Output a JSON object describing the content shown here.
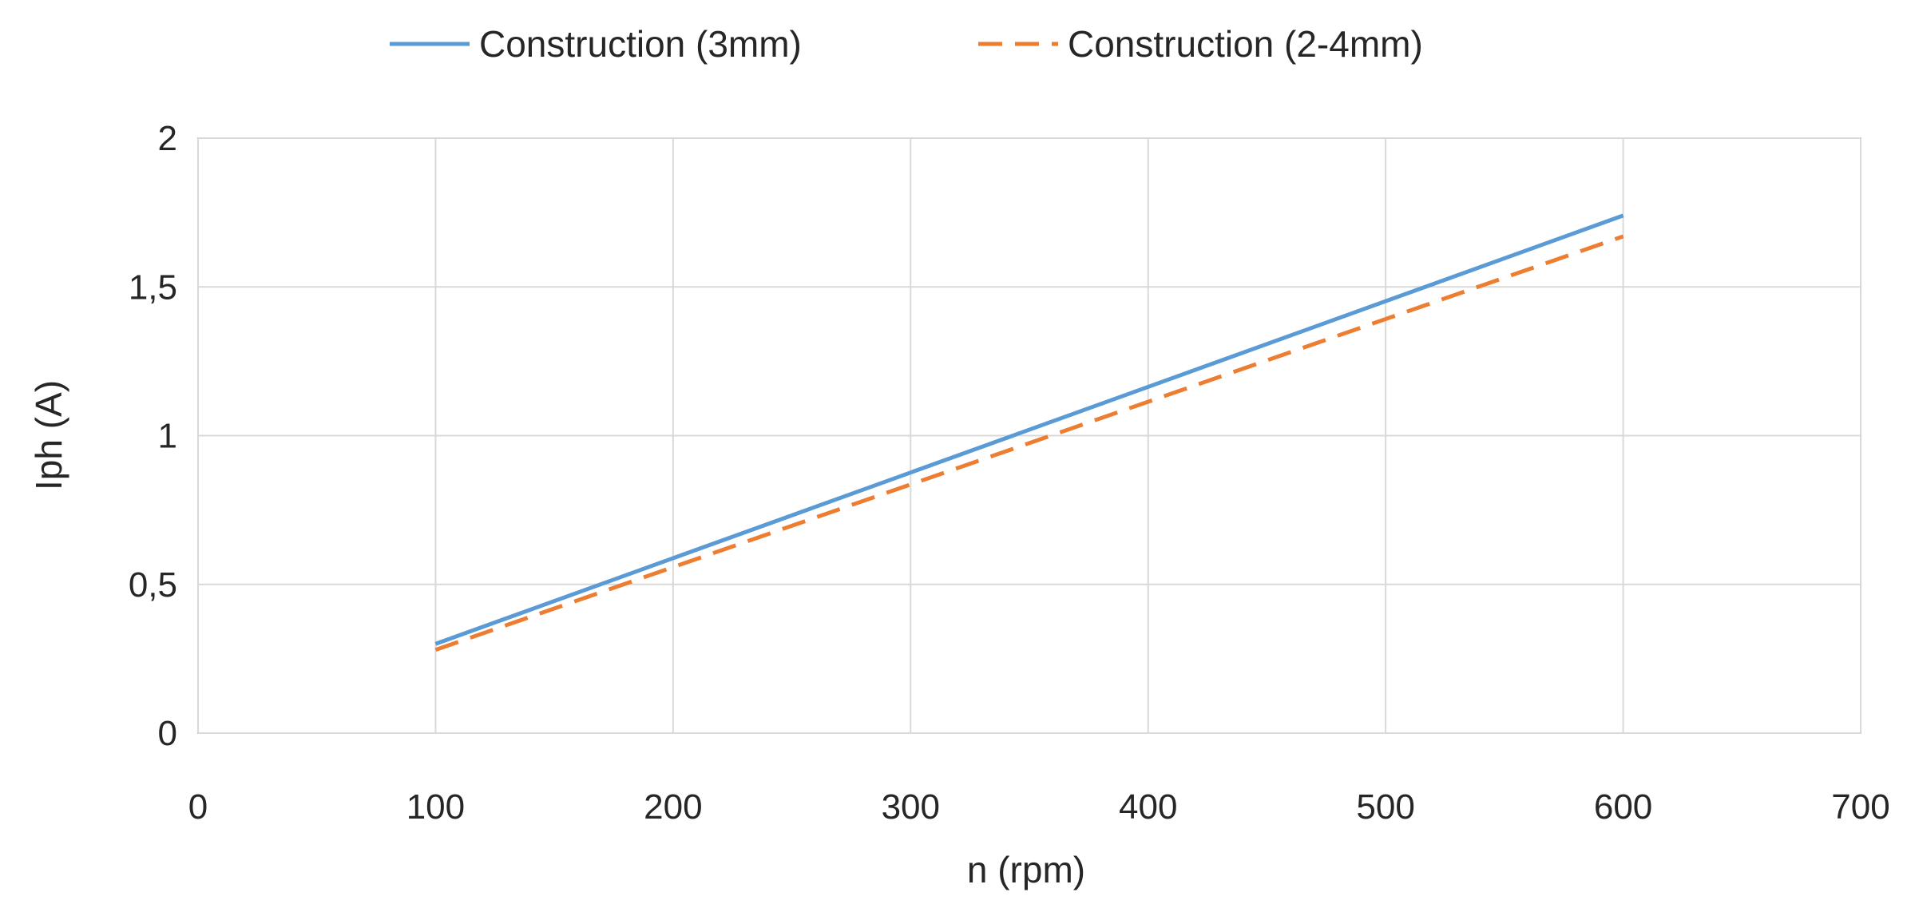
{
  "chart_data": {
    "type": "line",
    "title": "",
    "xlabel": "n (rpm)",
    "ylabel": "Iph (A)",
    "xlim": [
      0,
      700
    ],
    "ylim": [
      0,
      2
    ],
    "xticks": [
      0,
      100,
      200,
      300,
      400,
      500,
      600,
      700
    ],
    "yticks": [
      0,
      0.5,
      1,
      1.5,
      2
    ],
    "xtick_labels": [
      "0",
      "100",
      "200",
      "300",
      "400",
      "500",
      "600",
      "700"
    ],
    "ytick_labels": [
      "0",
      "0,5",
      "1",
      "1,5",
      "2"
    ],
    "grid": true,
    "legend_position": "top",
    "series": [
      {
        "name": "Construction (3mm)",
        "color": "#5B9BD5",
        "style": "solid",
        "x": [
          100,
          600
        ],
        "y": [
          0.3,
          1.74
        ]
      },
      {
        "name": "Construction (2-4mm)",
        "color": "#ED7D31",
        "style": "dashed",
        "x": [
          100,
          600
        ],
        "y": [
          0.28,
          1.67
        ]
      }
    ]
  }
}
